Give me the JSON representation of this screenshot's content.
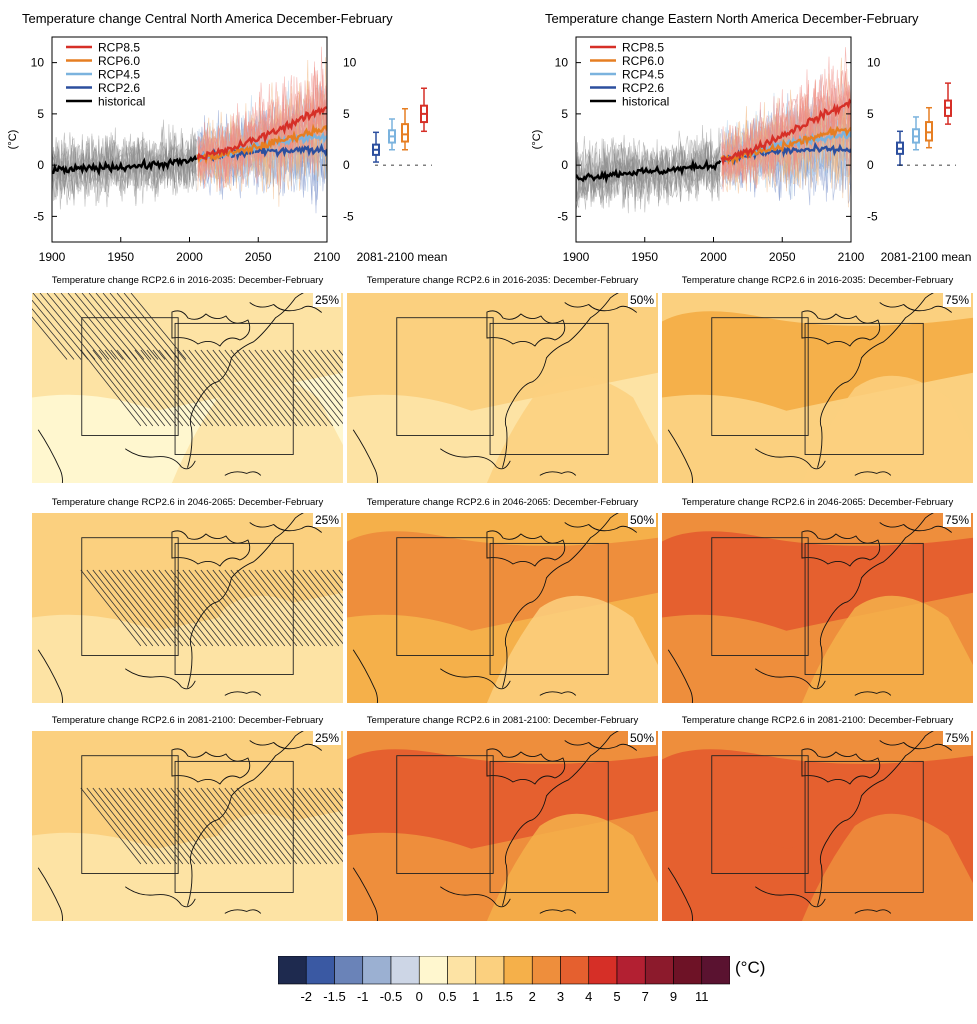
{
  "time_series_panels": [
    {
      "title": "Temperature change Central North America December-February",
      "y_axis_label": "(°C)",
      "x_ticks": [
        "1900",
        "1950",
        "2000",
        "2050",
        "2100"
      ],
      "y_ticks": [
        "10",
        "5",
        "0",
        "-5"
      ],
      "boxplot_caption": "2081-2100 mean"
    },
    {
      "title": "Temperature change Eastern North America December-February",
      "y_axis_label": "(°C)",
      "x_ticks": [
        "1900",
        "1950",
        "2000",
        "2050",
        "2100"
      ],
      "y_ticks": [
        "10",
        "5",
        "0",
        "-5"
      ],
      "boxplot_caption": "2081-2100 mean"
    }
  ],
  "legend": [
    {
      "label": "RCP8.5",
      "color": "#d62f27"
    },
    {
      "label": "RCP6.0",
      "color": "#e67e22"
    },
    {
      "label": "RCP4.5",
      "color": "#7bb3de"
    },
    {
      "label": "RCP2.6",
      "color": "#2c4f9e"
    },
    {
      "label": "historical",
      "color": "#000000"
    }
  ],
  "maps": {
    "rows": [
      {
        "title": "Temperature change RCP2.6 in 2016-2035: December-February"
      },
      {
        "title": "Temperature change RCP2.6 in 2046-2065: December-February"
      },
      {
        "title": "Temperature change RCP2.6 in 2081-2100: December-February"
      }
    ],
    "percentiles": [
      "25%",
      "50%",
      "75%"
    ]
  },
  "colorbar": {
    "unit": "(°C)",
    "tick_labels": [
      "-2",
      "-1.5",
      "-1",
      "-0.5",
      "0",
      "0.5",
      "1",
      "1.5",
      "2",
      "3",
      "4",
      "5",
      "7",
      "9",
      "11"
    ],
    "colors": [
      "#1e2a4f",
      "#3a59a3",
      "#6a83b8",
      "#9bb0d2",
      "#cdd6e6",
      "#fff7cf",
      "#fde3a4",
      "#fbd07f",
      "#f5b04a",
      "#ee8e3c",
      "#e5602f",
      "#d62f27",
      "#b32032",
      "#8c1a2c",
      "#6e1226",
      "#5a1230"
    ]
  },
  "chart_data": [
    {
      "type": "line",
      "title": "Temperature change Central North America December-February",
      "xlabel": "",
      "ylabel": "(°C)",
      "xlim": [
        1900,
        2100
      ],
      "ylim": [
        -7.5,
        12.5
      ],
      "series": [
        {
          "name": "historical",
          "x": [
            1900,
            1920,
            1940,
            1960,
            1980,
            2000,
            2005
          ],
          "y": [
            -0.5,
            -0.4,
            -0.2,
            -0.1,
            0.1,
            0.4,
            0.6
          ]
        },
        {
          "name": "RCP2.6",
          "x": [
            2006,
            2025,
            2050,
            2075,
            2100
          ],
          "y": [
            0.7,
            1.0,
            1.3,
            1.5,
            1.5
          ]
        },
        {
          "name": "RCP4.5",
          "x": [
            2006,
            2025,
            2050,
            2075,
            2100
          ],
          "y": [
            0.7,
            1.1,
            1.9,
            2.5,
            2.8
          ]
        },
        {
          "name": "RCP6.0",
          "x": [
            2006,
            2025,
            2050,
            2075,
            2100
          ],
          "y": [
            0.7,
            1.0,
            1.8,
            2.7,
            3.7
          ]
        },
        {
          "name": "RCP8.5",
          "x": [
            2006,
            2025,
            2050,
            2075,
            2100
          ],
          "y": [
            0.8,
            1.3,
            2.6,
            4.1,
            5.6
          ]
        }
      ],
      "boxplots_2081_2100_mean": [
        {
          "name": "RCP2.6",
          "min": 0.3,
          "q1": 1.0,
          "median": 1.5,
          "q3": 2.0,
          "max": 3.2
        },
        {
          "name": "RCP4.5",
          "min": 1.5,
          "q1": 2.2,
          "median": 2.8,
          "q3": 3.4,
          "max": 4.5
        },
        {
          "name": "RCP6.0",
          "min": 1.5,
          "q1": 2.3,
          "median": 3.0,
          "q3": 4.0,
          "max": 5.5
        },
        {
          "name": "RCP8.5",
          "min": 3.3,
          "q1": 4.2,
          "median": 5.0,
          "q3": 5.8,
          "max": 7.5
        }
      ]
    },
    {
      "type": "line",
      "title": "Temperature change Eastern North America December-February",
      "xlabel": "",
      "ylabel": "(°C)",
      "xlim": [
        1900,
        2100
      ],
      "ylim": [
        -7.5,
        12.5
      ],
      "series": [
        {
          "name": "historical",
          "x": [
            1900,
            1920,
            1940,
            1960,
            1980,
            2000,
            2005
          ],
          "y": [
            -1.2,
            -1.0,
            -0.7,
            -0.6,
            -0.3,
            0.0,
            0.3
          ]
        },
        {
          "name": "RCP2.6",
          "x": [
            2006,
            2025,
            2050,
            2075,
            2100
          ],
          "y": [
            0.5,
            1.0,
            1.4,
            1.5,
            1.5
          ]
        },
        {
          "name": "RCP4.5",
          "x": [
            2006,
            2025,
            2050,
            2075,
            2100
          ],
          "y": [
            0.5,
            1.1,
            2.0,
            2.6,
            3.0
          ]
        },
        {
          "name": "RCP6.0",
          "x": [
            2006,
            2025,
            2050,
            2075,
            2100
          ],
          "y": [
            0.5,
            1.0,
            1.8,
            2.8,
            3.6
          ]
        },
        {
          "name": "RCP8.5",
          "x": [
            2006,
            2025,
            2050,
            2075,
            2100
          ],
          "y": [
            0.6,
            1.3,
            2.9,
            4.6,
            6.1
          ]
        }
      ],
      "boxplots_2081_2100_mean": [
        {
          "name": "RCP2.6",
          "min": 0.0,
          "q1": 1.1,
          "median": 1.6,
          "q3": 2.2,
          "max": 3.3
        },
        {
          "name": "RCP4.5",
          "min": 1.5,
          "q1": 2.2,
          "median": 2.8,
          "q3": 3.5,
          "max": 4.7
        },
        {
          "name": "RCP6.0",
          "min": 1.7,
          "q1": 2.4,
          "median": 3.2,
          "q3": 4.2,
          "max": 5.6
        },
        {
          "name": "RCP8.5",
          "min": 4.0,
          "q1": 4.8,
          "median": 5.6,
          "q3": 6.3,
          "max": 8.0
        }
      ]
    },
    {
      "type": "heatmap",
      "colorbar_levels": [
        -2,
        -1.5,
        -1,
        -0.5,
        0,
        0.5,
        1,
        1.5,
        2,
        3,
        4,
        5,
        7,
        9,
        11
      ],
      "panels": [
        {
          "period": "2016-2035",
          "percentile": "25%",
          "dominant_range": [
            0,
            1
          ],
          "hatching": true
        },
        {
          "period": "2016-2035",
          "percentile": "50%",
          "dominant_range": [
            0.5,
            1.5
          ],
          "hatching": false
        },
        {
          "period": "2016-2035",
          "percentile": "75%",
          "dominant_range": [
            1,
            2
          ],
          "hatching": false
        },
        {
          "period": "2046-2065",
          "percentile": "25%",
          "dominant_range": [
            0.5,
            1.5
          ],
          "hatching": true
        },
        {
          "period": "2046-2065",
          "percentile": "50%",
          "dominant_range": [
            1,
            3
          ],
          "hatching": false
        },
        {
          "period": "2046-2065",
          "percentile": "75%",
          "dominant_range": [
            1.5,
            4
          ],
          "hatching": false
        },
        {
          "period": "2081-2100",
          "percentile": "25%",
          "dominant_range": [
            0.5,
            1.5
          ],
          "hatching": true
        },
        {
          "period": "2081-2100",
          "percentile": "50%",
          "dominant_range": [
            1,
            4
          ],
          "hatching": false
        },
        {
          "period": "2081-2100",
          "percentile": "75%",
          "dominant_range": [
            1.5,
            4
          ],
          "hatching": false
        }
      ]
    }
  ]
}
